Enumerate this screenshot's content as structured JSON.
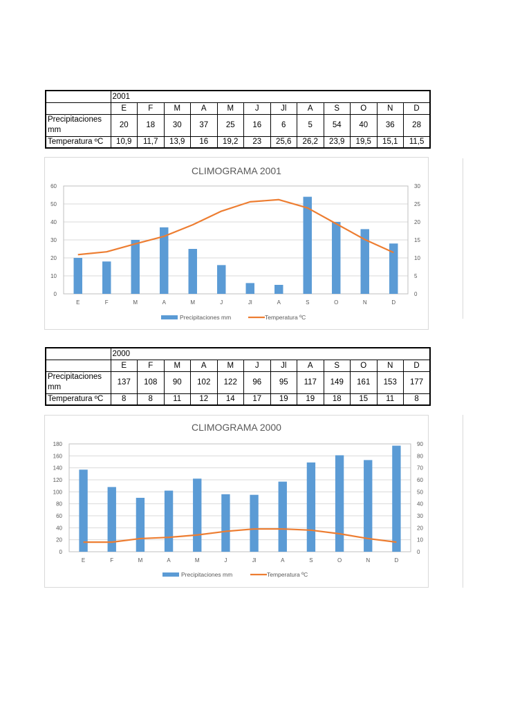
{
  "tables": [
    {
      "year": "2001",
      "months": [
        "E",
        "F",
        "M",
        "A",
        "M",
        "J",
        "Jl",
        "A",
        "S",
        "O",
        "N",
        "D"
      ],
      "precip_label": "Precipitaciones mm",
      "temp_label": "Temperatura ºC",
      "precip": [
        "20",
        "18",
        "30",
        "37",
        "25",
        "16",
        "6",
        "5",
        "54",
        "40",
        "36",
        "28"
      ],
      "temp": [
        "10,9",
        "11,7",
        "13,9",
        "16",
        "19,2",
        "23",
        "25,6",
        "26,2",
        "23,9",
        "19,5",
        "15,1",
        "11,5"
      ]
    },
    {
      "year": "2000",
      "months": [
        "E",
        "F",
        "M",
        "A",
        "M",
        "J",
        "Jl",
        "A",
        "S",
        "O",
        "N",
        "D"
      ],
      "precip_label": "Precipitaciones mm",
      "temp_label": "Temperatura ºC",
      "precip": [
        "137",
        "108",
        "90",
        "102",
        "122",
        "96",
        "95",
        "117",
        "149",
        "161",
        "153",
        "177"
      ],
      "temp": [
        "8",
        "8",
        "11",
        "12",
        "14",
        "17",
        "19",
        "19",
        "18",
        "15",
        "11",
        "8"
      ]
    }
  ],
  "chart_data": [
    {
      "type": "bar",
      "title": "CLIMOGRAMA 2001",
      "categories": [
        "E",
        "F",
        "M",
        "A",
        "M",
        "J",
        "Jl",
        "A",
        "S",
        "O",
        "N",
        "D"
      ],
      "series": [
        {
          "name": "Precipitaciones mm",
          "type": "bar",
          "axis": "left",
          "color": "#5b9bd5",
          "values": [
            20,
            18,
            30,
            37,
            25,
            16,
            6,
            5,
            54,
            40,
            36,
            28
          ]
        },
        {
          "name": "Temperatura ºC",
          "type": "line",
          "axis": "right",
          "color": "#ed7d31",
          "values": [
            10.9,
            11.7,
            13.9,
            16,
            19.2,
            23,
            25.6,
            26.2,
            23.9,
            19.5,
            15.1,
            11.5
          ]
        }
      ],
      "ylim": [
        0,
        60
      ],
      "yticks": [
        "0",
        "10",
        "20",
        "30",
        "40",
        "50",
        "60"
      ],
      "y2lim": [
        0,
        30
      ],
      "y2ticks": [
        "0",
        "5",
        "10",
        "15",
        "20",
        "25",
        "30"
      ],
      "grid": true,
      "legend": "bottom"
    },
    {
      "type": "bar",
      "title": "CLIMOGRAMA 2000",
      "categories": [
        "E",
        "F",
        "M",
        "A",
        "M",
        "J",
        "Jl",
        "A",
        "S",
        "O",
        "N",
        "D"
      ],
      "series": [
        {
          "name": "Precipitaciones mm",
          "type": "bar",
          "axis": "left",
          "color": "#5b9bd5",
          "values": [
            137,
            108,
            90,
            102,
            122,
            96,
            95,
            117,
            149,
            161,
            153,
            177
          ]
        },
        {
          "name": "Temperatura ºC",
          "type": "line",
          "axis": "right",
          "color": "#ed7d31",
          "values": [
            8,
            8,
            11,
            12,
            14,
            17,
            19,
            19,
            18,
            15,
            11,
            8
          ]
        }
      ],
      "ylim": [
        0,
        180
      ],
      "yticks": [
        "0",
        "20",
        "40",
        "60",
        "80",
        "100",
        "120",
        "140",
        "160",
        "180"
      ],
      "y2lim": [
        0,
        90
      ],
      "y2ticks": [
        "0",
        "10",
        "20",
        "30",
        "40",
        "50",
        "60",
        "70",
        "80",
        "90"
      ],
      "grid": true,
      "legend": "bottom"
    }
  ]
}
